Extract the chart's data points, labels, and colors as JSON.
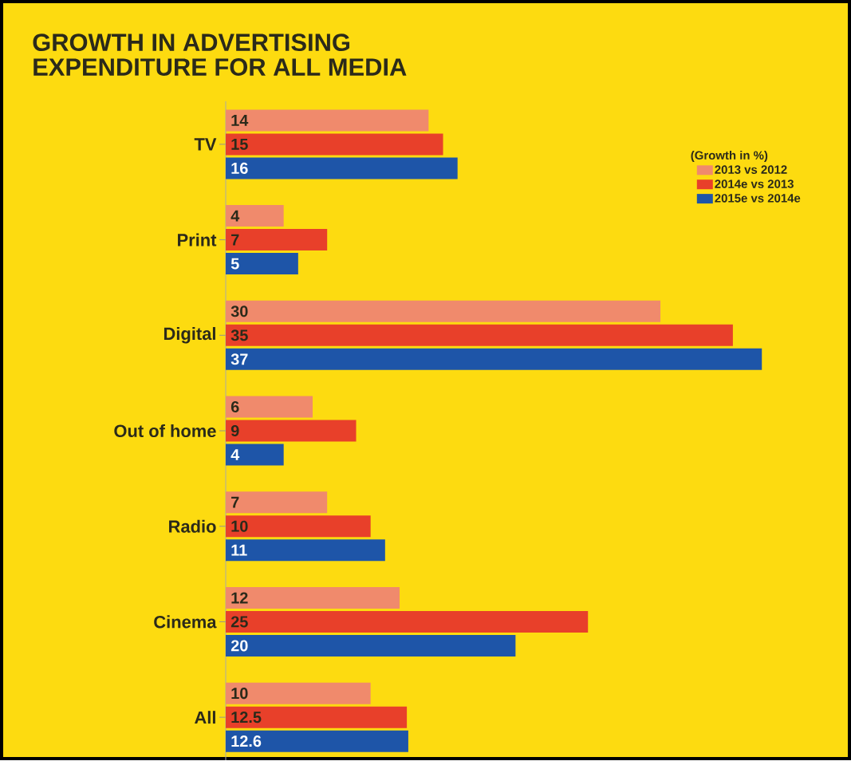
{
  "chart_data": {
    "type": "bar",
    "orientation": "horizontal",
    "title": "GROWTH IN ADVERTISING\nEXPENDITURE FOR ALL MEDIA",
    "legend_title": "(Growth in %)",
    "categories": [
      "TV",
      "Print",
      "Digital",
      "Out of home",
      "Radio",
      "Cinema",
      "All"
    ],
    "series": [
      {
        "name": "2013 vs 2012",
        "color": "#f08a6c",
        "values": [
          14,
          4,
          30,
          6,
          7,
          12,
          10
        ]
      },
      {
        "name": "2014e vs 2013",
        "color": "#e8402a",
        "values": [
          15,
          7,
          35,
          9,
          10,
          25,
          12.5
        ]
      },
      {
        "name": "2015e vs 2014e",
        "color": "#1e55a8",
        "values": [
          16,
          5,
          37,
          4,
          11,
          20,
          12.6
        ]
      }
    ],
    "data_labels": true,
    "legend": "top right",
    "tick_labels": "y"
  }
}
